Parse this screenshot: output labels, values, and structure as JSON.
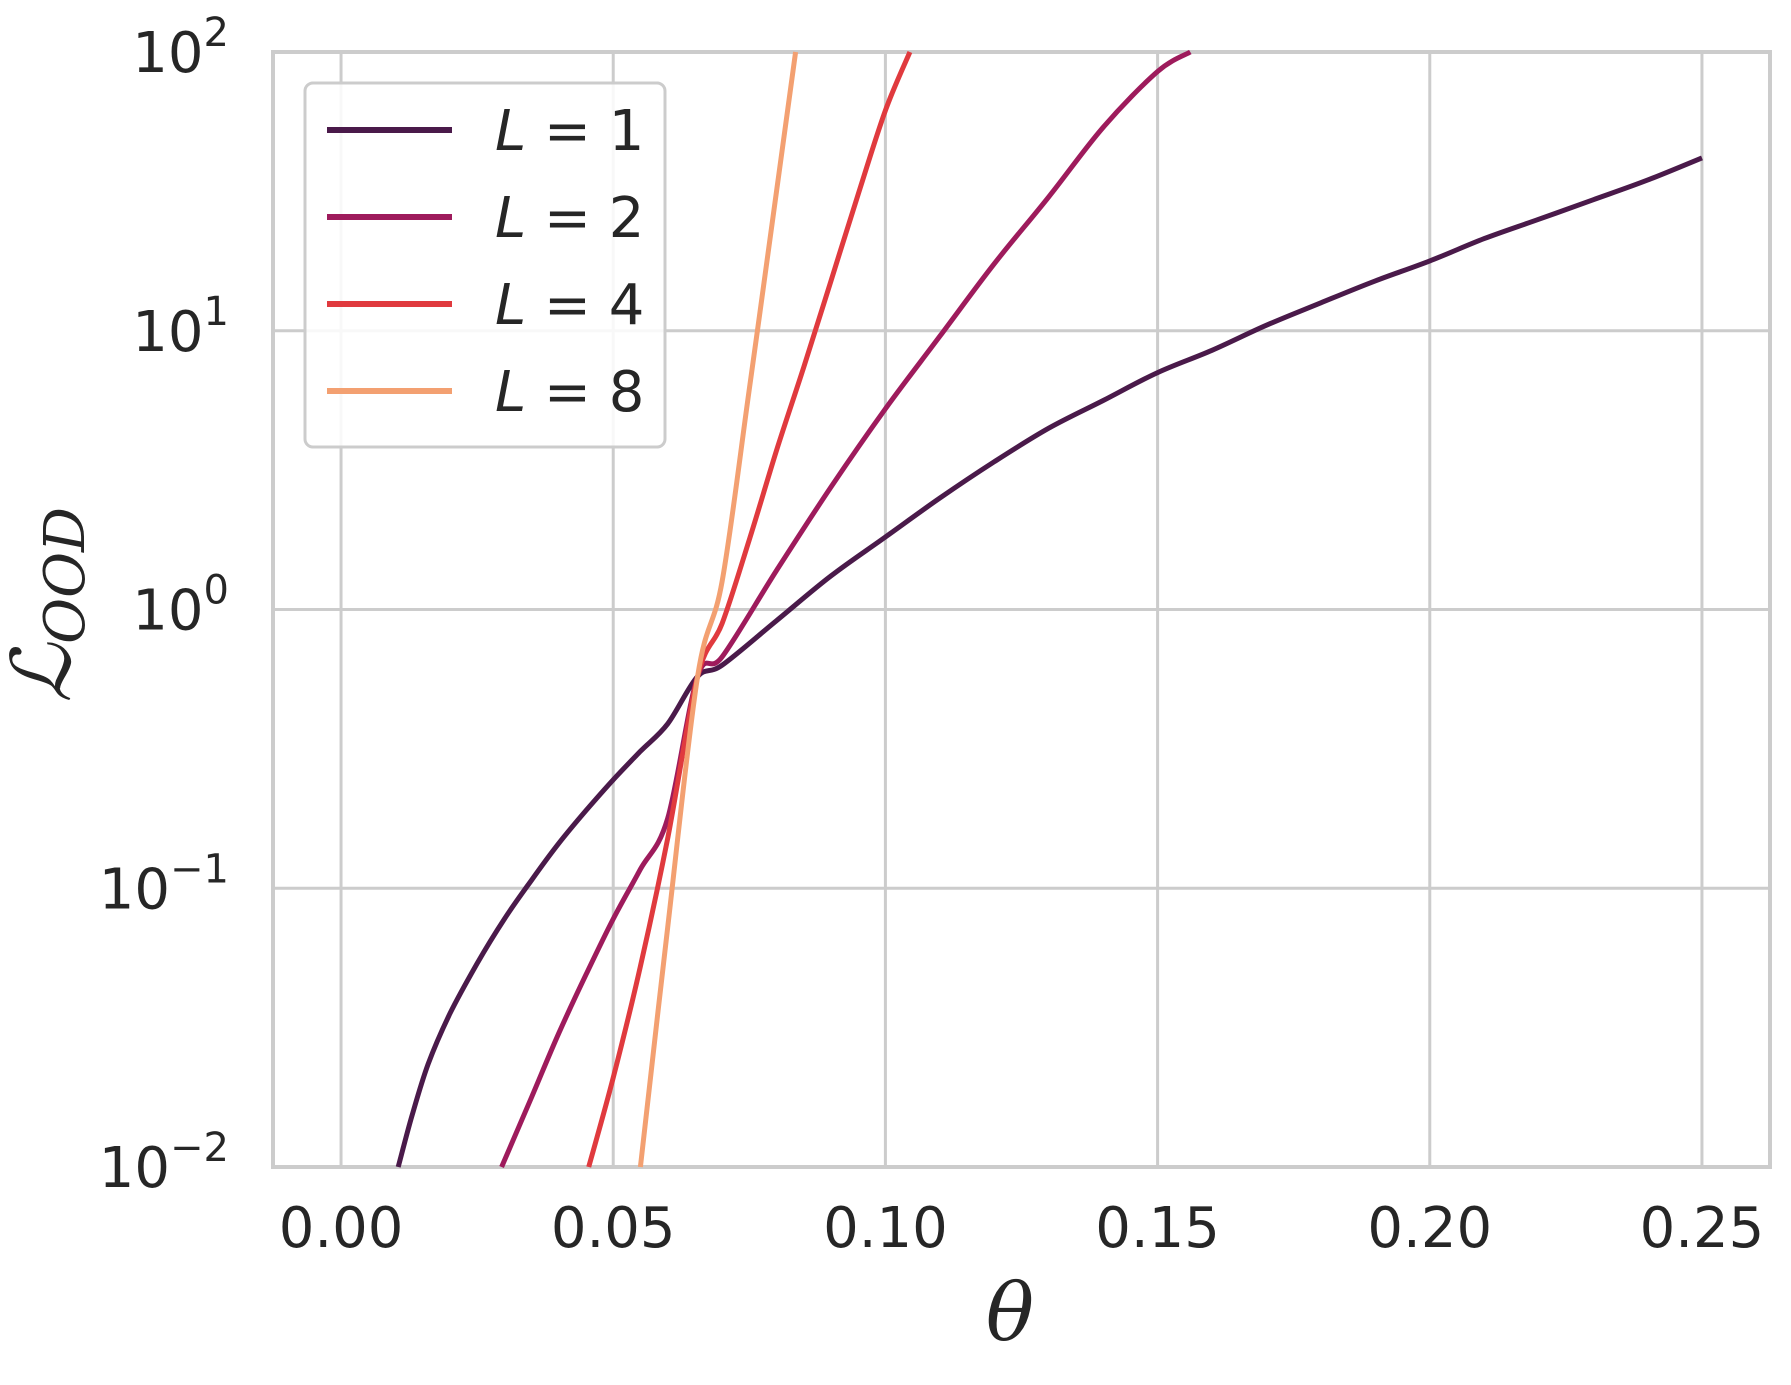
{
  "chart_data": {
    "type": "line",
    "title": "",
    "xlabel": "θ",
    "ylabel_main": "ℒ",
    "ylabel_sub": "OOD",
    "xlim": [
      -0.0125,
      0.2625
    ],
    "ylim": [
      0.01,
      100
    ],
    "yscale": "log",
    "grid": true,
    "legend_position": "top-left",
    "x_ticks": [
      {
        "value": 0.0,
        "label": "0.00"
      },
      {
        "value": 0.05,
        "label": "0.05"
      },
      {
        "value": 0.1,
        "label": "0.10"
      },
      {
        "value": 0.15,
        "label": "0.15"
      },
      {
        "value": 0.2,
        "label": "0.20"
      },
      {
        "value": 0.25,
        "label": "0.25"
      }
    ],
    "y_ticks": [
      {
        "value": 0.01,
        "base": "10",
        "exp": "−2"
      },
      {
        "value": 0.1,
        "base": "10",
        "exp": "−1"
      },
      {
        "value": 1,
        "base": "10",
        "exp": "0"
      },
      {
        "value": 10,
        "base": "10",
        "exp": "1"
      },
      {
        "value": 100,
        "base": "10",
        "exp": "2"
      }
    ],
    "series": [
      {
        "name": "L = 1",
        "label_var": "L",
        "label_rest": " = 1",
        "color": "#4a1a4a",
        "x": [
          0.0105,
          0.013,
          0.016,
          0.02,
          0.025,
          0.03,
          0.035,
          0.04,
          0.045,
          0.05,
          0.055,
          0.06,
          0.0655,
          0.07,
          0.08,
          0.09,
          0.1,
          0.11,
          0.12,
          0.13,
          0.14,
          0.15,
          0.16,
          0.17,
          0.18,
          0.19,
          0.2,
          0.21,
          0.22,
          0.23,
          0.24,
          0.25
        ],
        "y": [
          0.01,
          0.0152,
          0.0234,
          0.0355,
          0.0537,
          0.0776,
          0.107,
          0.145,
          0.19,
          0.245,
          0.31,
          0.389,
          0.575,
          0.631,
          0.912,
          1.32,
          1.82,
          2.51,
          3.39,
          4.47,
          5.62,
          7.08,
          8.51,
          10.47,
          12.6,
          15.1,
          17.8,
          21.4,
          25.1,
          29.5,
          34.7,
          41.7
        ]
      },
      {
        "name": "L = 2",
        "label_var": "L",
        "label_rest": " = 2",
        "color": "#9e1b5c",
        "x": [
          0.0295,
          0.035,
          0.04,
          0.045,
          0.05,
          0.055,
          0.06,
          0.0655,
          0.07,
          0.08,
          0.09,
          0.1,
          0.11,
          0.12,
          0.13,
          0.14,
          0.15,
          0.156
        ],
        "y": [
          0.01,
          0.0178,
          0.0302,
          0.049,
          0.0776,
          0.117,
          0.178,
          0.575,
          0.676,
          1.38,
          2.75,
          5.25,
          9.55,
          17.4,
          30.2,
          53.7,
          85.1,
          100
        ]
      },
      {
        "name": "L = 4",
        "label_var": "L",
        "label_rest": " = 4",
        "color": "#e03a3e",
        "x": [
          0.0455,
          0.05,
          0.055,
          0.06,
          0.0655,
          0.07,
          0.075,
          0.08,
          0.085,
          0.09,
          0.095,
          0.1,
          0.1045
        ],
        "y": [
          0.01,
          0.0209,
          0.0525,
          0.151,
          0.575,
          0.891,
          1.78,
          3.72,
          7.41,
          15.1,
          30.9,
          61.7,
          100
        ]
      },
      {
        "name": "L = 8",
        "label_var": "L",
        "label_rest": " = 8",
        "color": "#f3a071",
        "x": [
          0.055,
          0.06,
          0.0655,
          0.07,
          0.075,
          0.08,
          0.0835
        ],
        "y": [
          0.01,
          0.0724,
          0.575,
          1.26,
          6.17,
          31.6,
          100
        ]
      }
    ]
  }
}
